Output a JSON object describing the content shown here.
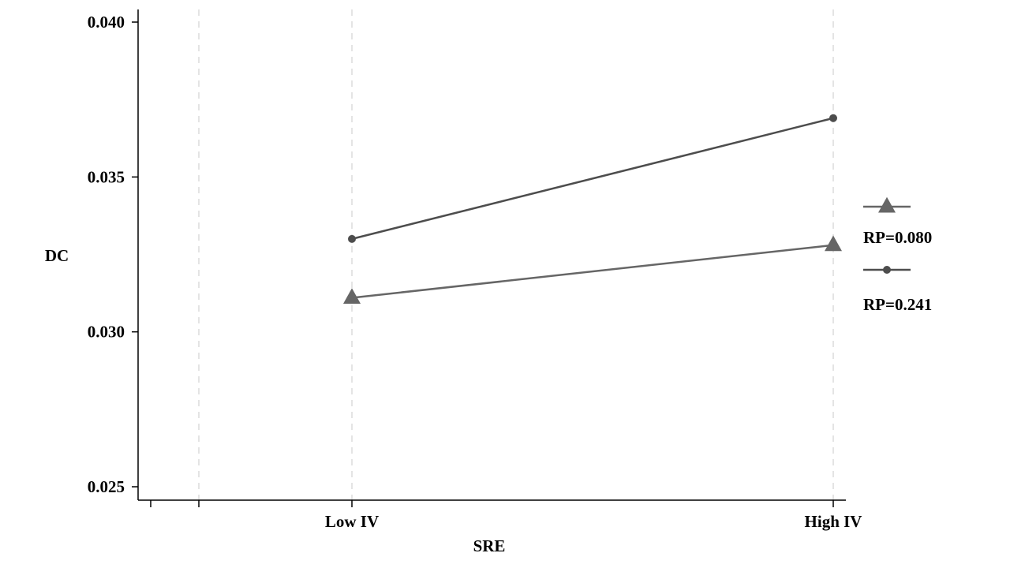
{
  "chart_data": {
    "type": "line",
    "title": "",
    "xlabel": "SRE",
    "ylabel": "DC",
    "categories": [
      "Low IV",
      "High IV"
    ],
    "ylim": [
      0.025,
      0.04
    ],
    "yticks": [
      0.025,
      0.03,
      0.035,
      0.04
    ],
    "ytick_labels": [
      "0.025",
      "0.030",
      "0.035",
      "0.040"
    ],
    "grid": "vertical dashed",
    "legend_position": "right",
    "series": [
      {
        "name": "RP=0.080",
        "marker": "triangle",
        "color": "#666666",
        "values": [
          0.0311,
          0.0328
        ]
      },
      {
        "name": "RP=0.241",
        "marker": "circle",
        "color": "#4d4d4d",
        "values": [
          0.033,
          0.0369
        ]
      }
    ]
  }
}
